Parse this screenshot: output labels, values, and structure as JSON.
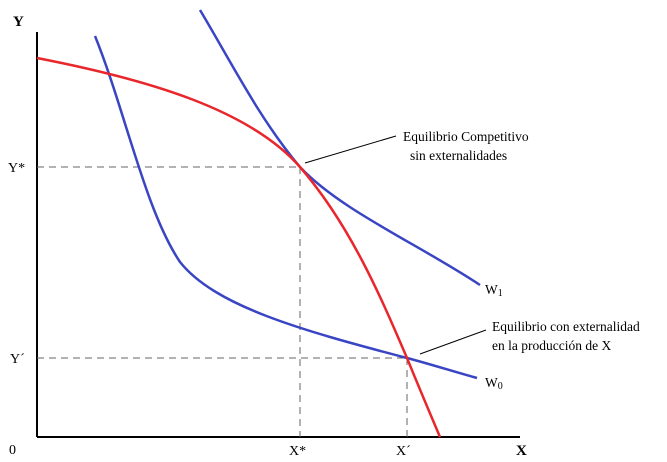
{
  "axes": {
    "x_label": "X",
    "y_label": "Y",
    "origin_label": "0"
  },
  "ticks": {
    "x_star": "X*",
    "x_prime": "X´",
    "y_star": "Y*",
    "y_prime": "Y´"
  },
  "curves": {
    "w1": {
      "letter": "W",
      "subscript": "1"
    },
    "w0": {
      "letter": "W",
      "subscript": "0"
    }
  },
  "annotations": {
    "competitive": {
      "line1": "Equilibrio Competitivo",
      "line2": "sin externalidades"
    },
    "externality": {
      "line1": "Equilibrio con externalidad",
      "line2": "en la producción de X"
    }
  },
  "colors": {
    "ppf": "#e8262b",
    "indifference": "#3a45c4",
    "axis": "#000000",
    "guide": "#555555"
  }
}
